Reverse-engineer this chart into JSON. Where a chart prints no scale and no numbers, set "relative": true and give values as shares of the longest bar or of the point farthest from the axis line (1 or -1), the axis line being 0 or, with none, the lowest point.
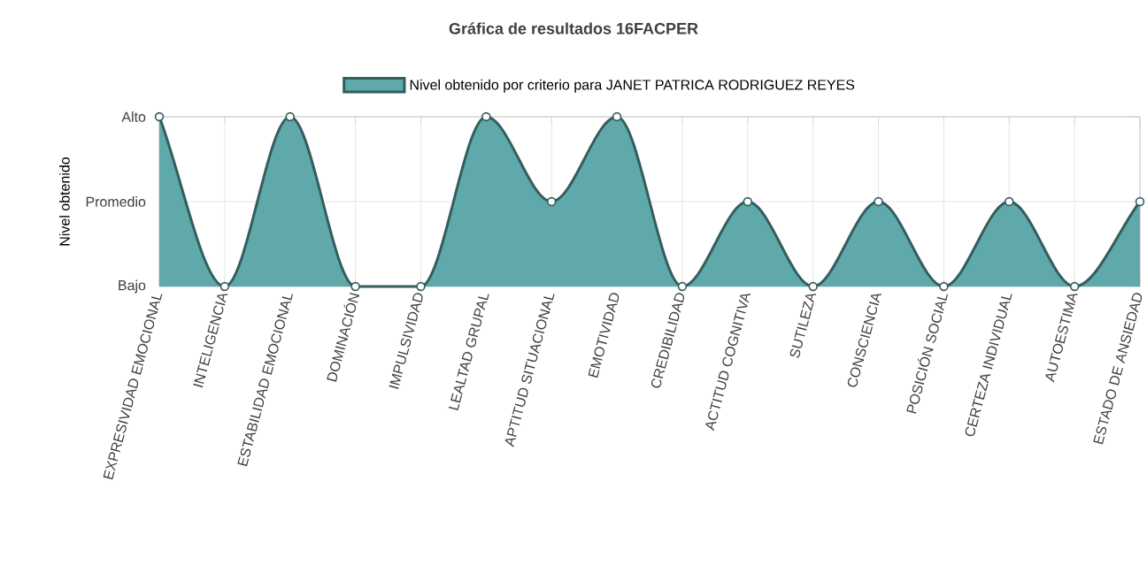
{
  "chart_data": {
    "type": "area",
    "title": "Gráfica de resultados 16FACPER",
    "ylabel": "Nivel obtenido",
    "relative": true,
    "categories": [
      "EXPRESIVIDAD EMOCIONAL",
      "INTELIGENCIA",
      "ESTABILIDAD EMOCIONAL",
      "DOMINACIÓN",
      "IMPULSIVIDAD",
      "LEALTAD GRUPAL",
      "APTITUD SITUACIONAL",
      "EMOTIVIDAD",
      "CREDIBILIDAD",
      "ACTITUD COGNITIVA",
      "SUTILEZA",
      "CONSCIENCIA",
      "POSICIÓN SOCIAL",
      "CERTEZA INDIVIDUAL",
      "AUTOESTIMA",
      "ESTADO DE ANSIEDAD"
    ],
    "series": [
      {
        "name": "Nivel obtenido por criterio para JANET PATRICA RODRIGUEZ REYES",
        "color": "#5fa9ab",
        "values": [
          1,
          0,
          1,
          0,
          0,
          1,
          0.5,
          1,
          0,
          0.5,
          0,
          0.5,
          0,
          0.5,
          0,
          0.5
        ]
      }
    ],
    "annotations": [
      "Alto",
      "Promedio",
      "Bajo"
    ],
    "grid": true,
    "legend": "top",
    "marker": "circle"
  }
}
